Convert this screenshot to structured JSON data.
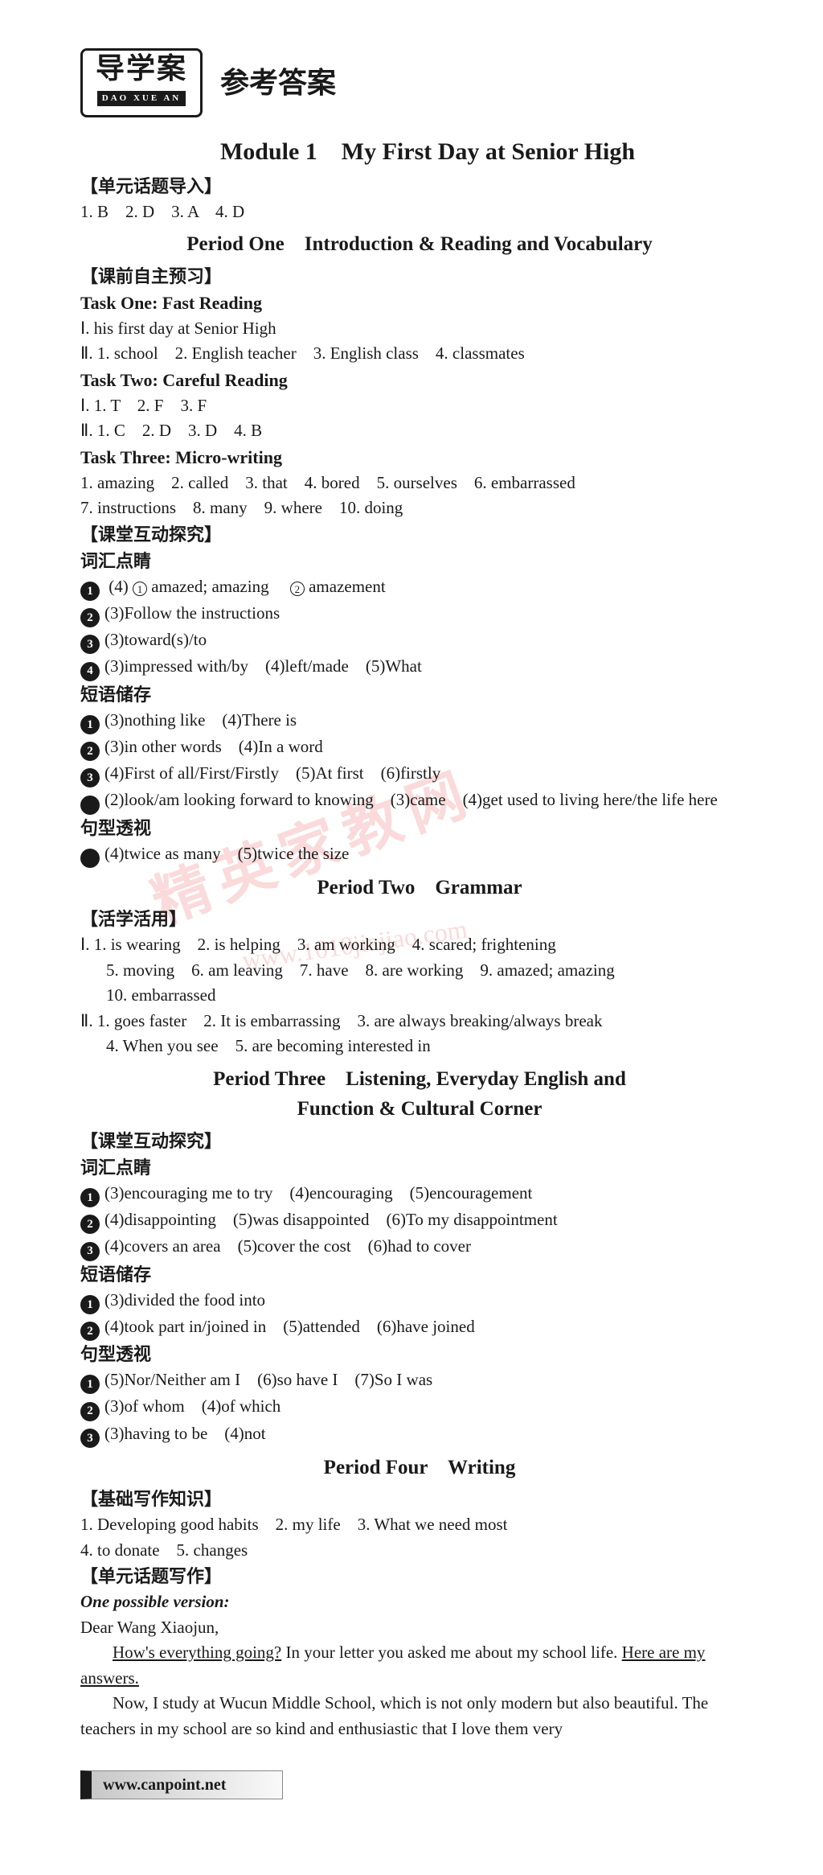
{
  "logo": {
    "main": "导学案",
    "pinyin": "DAO XUE AN"
  },
  "ref_title": "参考答案",
  "module_title": "Module 1　My First Day at Senior High",
  "watermark": {
    "text1": "精英家教网",
    "text2": "www.1010jiajiao.com"
  },
  "unit_intro": {
    "head": "【单元话题导入】",
    "answers": "1. B　2. D　3. A　4. D"
  },
  "period1": {
    "title": "Period One　Introduction & Reading and Vocabulary",
    "pre_head": "【课前自主预习】",
    "task1": {
      "title": "Task One: Fast Reading",
      "l1": "Ⅰ. his first day at Senior High",
      "l2": "Ⅱ. 1. school　2. English teacher　3. English class　4. classmates"
    },
    "task2": {
      "title": "Task Two: Careful Reading",
      "l1": "Ⅰ. 1. T　2. F　3. F",
      "l2": "Ⅱ. 1. C　2. D　3. D　4. B"
    },
    "task3": {
      "title": "Task Three: Micro-writing",
      "l1": "1. amazing　2. called　3. that　4. bored　5. ourselves　6. embarrassed",
      "l2": "7. instructions　8. many　9. where　10. doing"
    },
    "class_head": "【课堂互动探究】",
    "vocab_head": "词汇点睛",
    "vocab": {
      "i1a": "(4)",
      "i1b": "amazed; amazing　",
      "i1c": " amazement",
      "i2": "(3)Follow the instructions",
      "i3": "(3)toward(s)/to",
      "i4": "(3)impressed with/by　(4)left/made　(5)What"
    },
    "phrase_head": "短语储存",
    "phrase": {
      "i1": "(3)nothing like　(4)There is",
      "i2": "(3)in other words　(4)In a word",
      "i3": "(4)First of all/First/Firstly　(5)At first　(6)firstly",
      "i4": "(2)look/am looking forward to knowing　(3)came　(4)get used to living here/the life here"
    },
    "sent_head": "句型透视",
    "sent": {
      "i1": "(4)twice as many　(5)twice the size"
    }
  },
  "period2": {
    "title": "Period Two　Grammar",
    "act_head": "【活学活用】",
    "s1l1": "Ⅰ. 1. is wearing　2. is helping　3. am working　4. scared; frightening",
    "s1l2": "5. moving　6. am leaving　7. have　8. are working　9. amazed; amazing",
    "s1l3": "10. embarrassed",
    "s2l1": "Ⅱ. 1. goes faster　2. It is embarrassing　3. are always breaking/always break",
    "s2l2": "4. When you see　5. are becoming interested in"
  },
  "period3": {
    "title1": "Period Three　Listening, Everyday English and",
    "title2": "Function & Cultural Corner",
    "class_head": "【课堂互动探究】",
    "vocab_head": "词汇点睛",
    "vocab": {
      "i1": "(3)encouraging me to try　(4)encouraging　(5)encouragement",
      "i2": "(4)disappointing　(5)was disappointed　(6)To my disappointment",
      "i3": "(4)covers an area　(5)cover the cost　(6)had to cover"
    },
    "phrase_head": "短语储存",
    "phrase": {
      "i1": "(3)divided the food into",
      "i2": "(4)took part in/joined in　(5)attended　(6)have joined"
    },
    "sent_head": "句型透视",
    "sent": {
      "i1": "(5)Nor/Neither am I　(6)so have I　(7)So I was",
      "i2": "(3)of whom　(4)of which",
      "i3": "(3)having to be　(4)not"
    }
  },
  "period4": {
    "title": "Period Four　Writing",
    "basic_head": "【基础写作知识】",
    "l1": "1. Developing good habits　2. my life　3. What we need most",
    "l2": "4. to donate　5. changes",
    "topic_head": "【单元话题写作】",
    "version": "One possible version:",
    "greeting": "Dear Wang Xiaojun,",
    "p1a": "How's everything going?",
    "p1b": " In your letter you asked me about my school life. ",
    "p1c": "Here are my answers.",
    "p2": "Now, I study at Wucun Middle School, which is not only modern but also beautiful. The teachers in my school are so kind and enthusiastic that I love them very"
  },
  "footer": "www.canpoint.net"
}
